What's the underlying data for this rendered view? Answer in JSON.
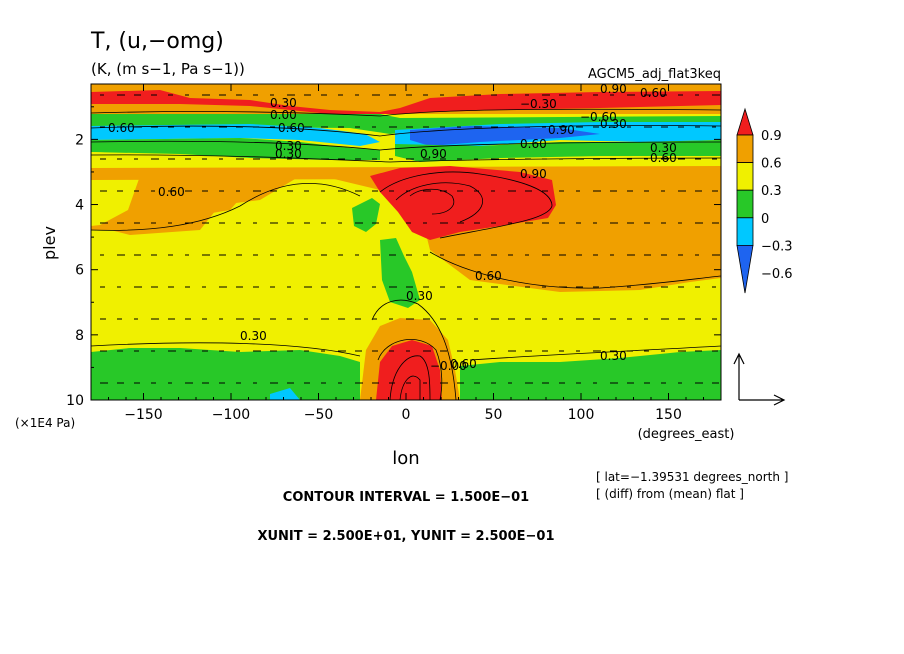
{
  "chart_data": {
    "type": "heatmap",
    "title": "T, (u,−omg)",
    "units": "(K, (m s−1, Pa s−1))",
    "dataset": "AGCM5_adj_flat3keq",
    "xlabel": "lon",
    "xunit_label": "(degrees_east)",
    "ylabel": "plev",
    "yunit_label": "(×1E4 Pa)",
    "xlim": [
      -180,
      180
    ],
    "ylim": [
      10,
      0.3
    ],
    "x_ticks": [
      -150,
      -100,
      -50,
      0,
      50,
      100,
      150
    ],
    "x_tick_labels": [
      "−150",
      "−100",
      "−50",
      "0",
      "50",
      "100",
      "150"
    ],
    "y_ticks": [
      2,
      4,
      6,
      8,
      10
    ],
    "y_tick_labels": [
      "2",
      "4",
      "6",
      "8",
      "10"
    ],
    "colorbar": {
      "levels": [
        -0.6,
        -0.3,
        0,
        0.3,
        0.6,
        0.9
      ],
      "labels": [
        "−0.6",
        "−0.3",
        "0",
        "0.3",
        "0.6",
        "0.9"
      ],
      "colors": [
        "#1e64f0",
        "#00c8ff",
        "#28c828",
        "#f0f000",
        "#f0a000",
        "#f01e1e"
      ]
    },
    "contour_labels": [
      "0.90",
      "0.60",
      "0.30",
      "0.00",
      "−0.30",
      "−0.60",
      "0.60",
      "0.90",
      "0.30",
      "0.60",
      "0.30",
      "0.30",
      "0.60",
      "0.90",
      "0.60",
      "0.90",
      "0.60",
      "0.30",
      "−0.00",
      "0.30",
      "0.30",
      "0.60",
      "0.30",
      "0.60"
    ],
    "vector_reference": {
      "xunit": "2.500E+01",
      "yunit": "2.500E−01"
    },
    "contour_interval_text": "CONTOUR INTERVAL = 1.500E−01",
    "unit_text": "XUNIT = 2.500E+01, YUNIT = 2.500E−01",
    "info_lines": [
      "[ lat=−1.39531 degrees_north ]",
      "[ (diff) from (mean) flat ]"
    ]
  }
}
